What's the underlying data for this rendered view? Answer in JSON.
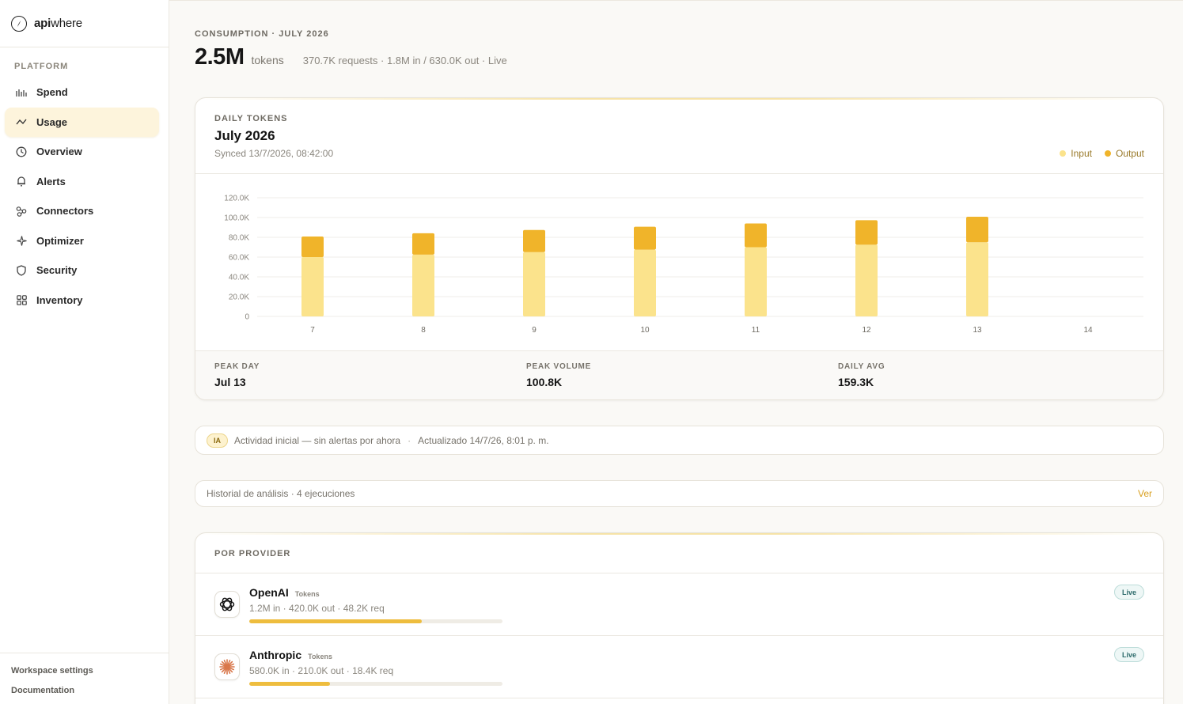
{
  "brand": {
    "name_bold": "api",
    "name_rest": "where"
  },
  "sidebar": {
    "section": "PLATFORM",
    "items": [
      {
        "label": "Spend",
        "icon": "bar-chart-icon"
      },
      {
        "label": "Usage",
        "icon": "trend-line-icon",
        "active": true
      },
      {
        "label": "Overview",
        "icon": "clock-icon"
      },
      {
        "label": "Alerts",
        "icon": "bell-icon"
      },
      {
        "label": "Connectors",
        "icon": "connectors-icon"
      },
      {
        "label": "Optimizer",
        "icon": "sparkle-icon"
      },
      {
        "label": "Security",
        "icon": "shield-icon"
      },
      {
        "label": "Inventory",
        "icon": "grid-icon"
      }
    ],
    "footer": [
      "Workspace settings",
      "Documentation"
    ]
  },
  "header": {
    "eyebrow": "CONSUMPTION · JULY 2026",
    "total": "2.5M",
    "unit": "tokens",
    "summary": "370.7K requests · 1.8M in / 630.0K out · Live"
  },
  "chart_card": {
    "eyebrow": "DAILY TOKENS",
    "title": "July 2026",
    "synced": "Synced 13/7/2026, 08:42:00",
    "legend": [
      {
        "label": "Input",
        "color": "#fbe38c"
      },
      {
        "label": "Output",
        "color": "#f0b42a"
      }
    ]
  },
  "chart_data": {
    "type": "bar",
    "stacked": true,
    "categories": [
      "7",
      "8",
      "9",
      "10",
      "11",
      "12",
      "13",
      "14"
    ],
    "series": [
      {
        "name": "Input",
        "color": "#fbe38c",
        "values": [
          60000,
          62500,
          65000,
          67500,
          70000,
          72500,
          75000,
          0
        ]
      },
      {
        "name": "Output",
        "color": "#f0b42a",
        "values": [
          20800,
          21600,
          22400,
          23200,
          24000,
          24800,
          25800,
          0
        ]
      }
    ],
    "ylim": [
      0,
      120000
    ],
    "yticks": [
      "0",
      "20.0K",
      "40.0K",
      "60.0K",
      "80.0K",
      "100.0K",
      "120.0K"
    ],
    "grid": true,
    "legend_position": "top-right"
  },
  "stats": [
    {
      "label": "PEAK DAY",
      "value": "Jul 13"
    },
    {
      "label": "PEAK VOLUME",
      "value": "100.8K"
    },
    {
      "label": "DAILY AVG",
      "value": "159.3K"
    }
  ],
  "ai_bar": {
    "badge": "IA",
    "message": "Actividad inicial — sin alertas por ahora",
    "separator": "·",
    "updated": "Actualizado 14/7/26, 8:01 p. m."
  },
  "history": {
    "text": "Historial de análisis · 4 ejecuciones",
    "link": "Ver"
  },
  "providers": {
    "title": "POR PROVIDER",
    "rows": [
      {
        "name": "OpenAI",
        "tag": "Tokens",
        "meta": "1.2M in · 420.0K out · 48.2K req",
        "share": 0.68,
        "status": "Live",
        "icon": "openai-logo-icon"
      },
      {
        "name": "Anthropic",
        "tag": "Tokens",
        "meta": "580.0K in · 210.0K out · 18.4K req",
        "share": 0.32,
        "status": "Live",
        "icon": "anthropic-logo-icon"
      }
    ]
  }
}
